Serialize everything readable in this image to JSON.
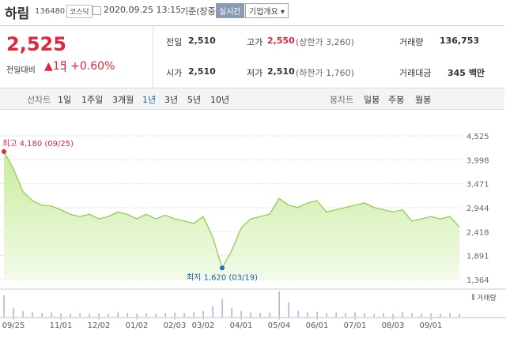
{
  "header": {
    "name": "하림",
    "code": "136480",
    "market": "코스닥",
    "datetime": "2020.09.25 13:15",
    "status": "기준(장중)",
    "realtime": "실시간",
    "overview": "기업개요"
  },
  "price": {
    "current": "2,525",
    "change_label": "전일대비",
    "change": "15",
    "change_pct": "+0.60%"
  },
  "stats": {
    "prev_label": "전일",
    "prev": "2,510",
    "open_label": "시가",
    "open": "2,510",
    "high_label": "고가",
    "high": "2,550",
    "upper_limit": "(상한가 3,260)",
    "low_label": "저가",
    "low": "2,510",
    "lower_limit": "(하한가 1,760)",
    "volume_label": "거래량",
    "volume": "136,753",
    "amount_label": "거래대금",
    "amount": "345",
    "amount_unit": "백만"
  },
  "period_tabs": [
    "선차트",
    "1일",
    "1주일",
    "3개월",
    "1년",
    "3년",
    "5년",
    "10년"
  ],
  "candle_tabs": [
    "봉차트",
    "일봉",
    "주봉",
    "월봉"
  ],
  "chart_data": {
    "type": "line",
    "color": "#8cc84b",
    "categories": [
      null,
      "09/25",
      null,
      null,
      null,
      null,
      "11/01",
      null,
      null,
      null,
      "12/02",
      null,
      null,
      null,
      "01/02",
      null,
      null,
      null,
      "02/03",
      null,
      null,
      "03/02",
      null,
      null,
      null,
      "04/01",
      null,
      null,
      null,
      "05/04",
      null,
      null,
      null,
      "06/01",
      null,
      null,
      null,
      "07/01",
      null,
      null,
      null,
      "08/03",
      null,
      null,
      null,
      "09/01",
      null,
      null,
      null
    ],
    "values": [
      4180,
      3800,
      3300,
      3100,
      3000,
      2980,
      2900,
      2800,
      2750,
      2800,
      2700,
      2750,
      2850,
      2800,
      2700,
      2800,
      2700,
      2780,
      2700,
      2650,
      2600,
      2750,
      2300,
      1620,
      2000,
      2500,
      2700,
      2750,
      2800,
      3150,
      3000,
      2950,
      3050,
      3100,
      2850,
      2900,
      2950,
      3000,
      3050,
      2950,
      2900,
      2850,
      2900,
      2650,
      2700,
      2750,
      2700,
      2750,
      2525
    ],
    "volume_name": "거래량",
    "volume_color": "#9a9ac8",
    "volume": [
      30,
      12,
      8,
      6,
      5,
      6,
      5,
      4,
      5,
      4,
      5,
      4,
      6,
      5,
      4,
      5,
      4,
      5,
      6,
      5,
      6,
      8,
      15,
      25,
      12,
      8,
      6,
      5,
      6,
      35,
      20,
      8,
      6,
      7,
      5,
      6,
      5,
      6,
      5,
      4,
      5,
      4,
      6,
      5,
      4,
      5,
      4,
      5,
      4
    ],
    "ylim": [
      1364,
      4525
    ],
    "yticks": [
      {
        "value": 1364,
        "label": "1,364"
      },
      {
        "value": 1891,
        "label": "1,891"
      },
      {
        "value": 2418,
        "label": "2,418"
      },
      {
        "value": 2944,
        "label": "2,944"
      },
      {
        "value": 3471,
        "label": "3,471"
      },
      {
        "value": 3998,
        "label": "3,998"
      },
      {
        "value": 4525,
        "label": "4,525"
      }
    ],
    "grid": true,
    "annotations": [
      {
        "text": "최고 4,180 (09/25)",
        "value": 4180
      },
      {
        "text": "최저 1,620 (03/19)",
        "value": 1620
      }
    ]
  }
}
